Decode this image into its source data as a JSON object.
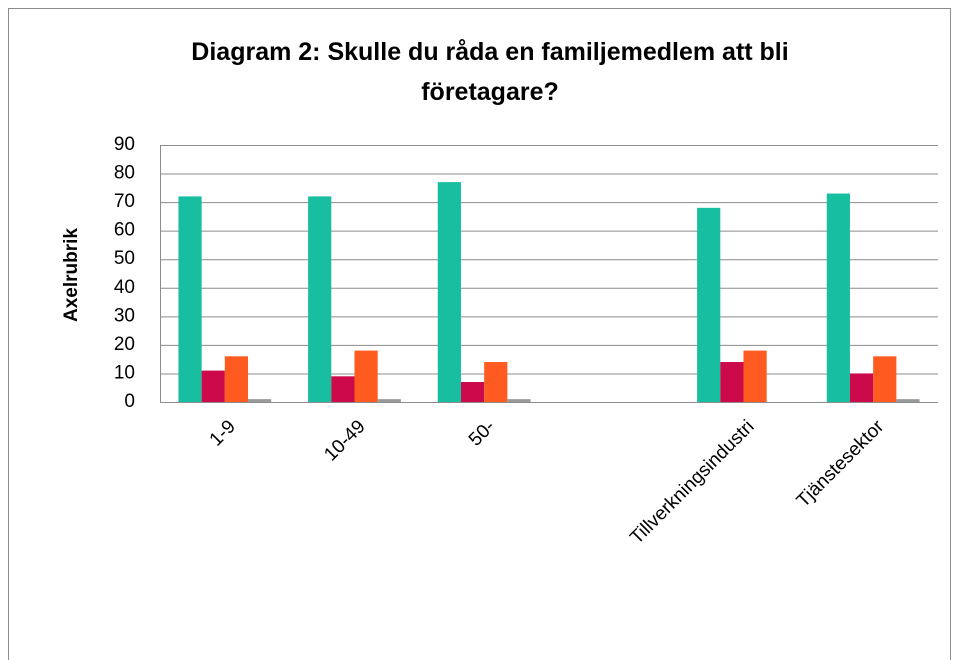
{
  "chart_data": {
    "type": "bar",
    "title": "Diagram 2: Skulle du råda en familjemedlem att bli företagare?",
    "y_label": "Axelrubrik",
    "categories": [
      "1-9",
      "10-49",
      "50-",
      null,
      "Tillverkningsindustri",
      "Tjänstesektor"
    ],
    "series": [
      {
        "color": "#17bfa0",
        "values": [
          72,
          72,
          77,
          null,
          68,
          73
        ]
      },
      {
        "color": "#cc0a4b",
        "values": [
          11,
          9,
          7,
          null,
          14,
          10
        ]
      },
      {
        "color": "#ff5a1f",
        "values": [
          16,
          18,
          14,
          null,
          18,
          16
        ]
      },
      {
        "color": "#9a9a9a",
        "values": [
          1,
          1,
          1,
          null,
          0,
          1
        ]
      }
    ],
    "ylim": [
      0,
      90
    ],
    "yticks": [
      0,
      10,
      20,
      30,
      40,
      50,
      60,
      70,
      80,
      90
    ],
    "grid": true
  }
}
